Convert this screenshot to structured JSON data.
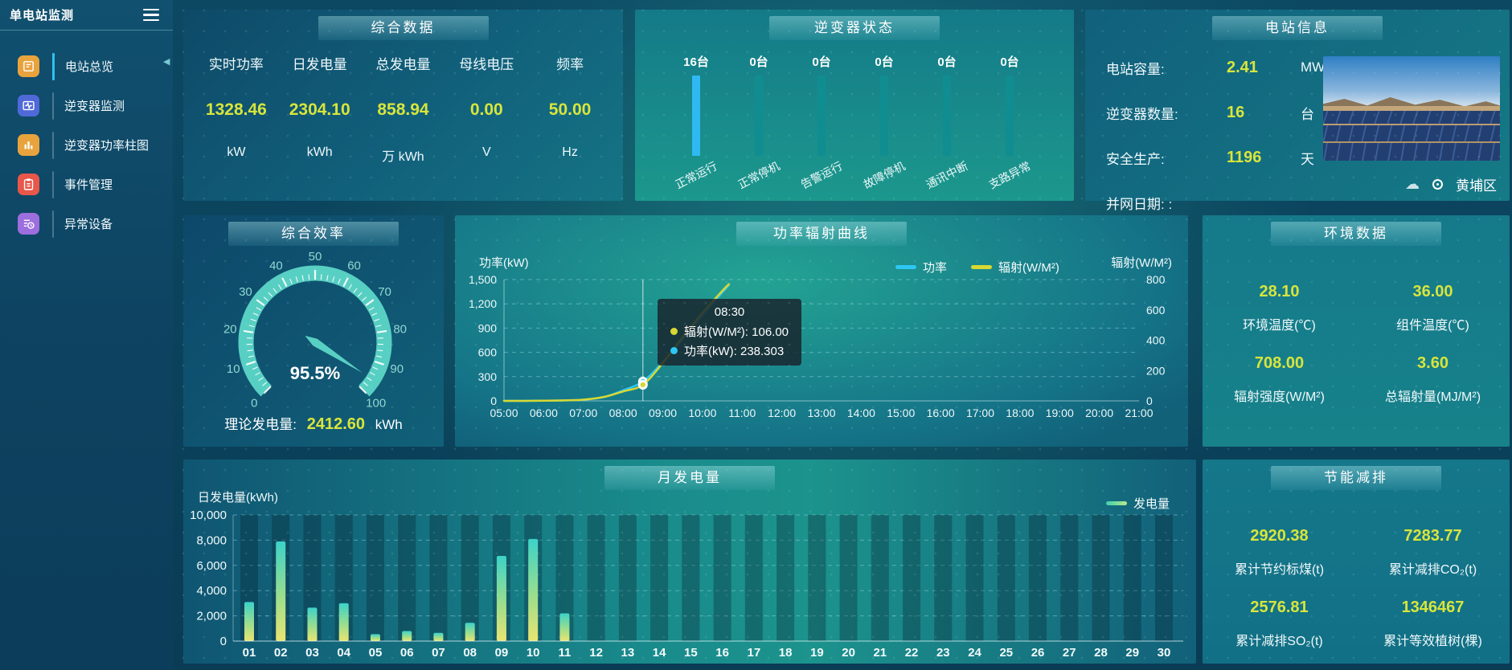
{
  "app": {
    "title": "单电站监测"
  },
  "sidebar": {
    "items": [
      {
        "label": "电站总览",
        "active": true,
        "color": "#e8a33d"
      },
      {
        "label": "逆变器监测",
        "active": false,
        "color": "#5069d8"
      },
      {
        "label": "逆变器功率柱图",
        "active": false,
        "color": "#e8a33d"
      },
      {
        "label": "事件管理",
        "active": false,
        "color": "#e8574a"
      },
      {
        "label": "异常设备",
        "active": false,
        "color": "#9d6ede"
      }
    ]
  },
  "panels": {
    "summary": {
      "title": "综合数据",
      "metrics": [
        {
          "label": "实时功率",
          "value": "1328.46",
          "unit": "kW"
        },
        {
          "label": "日发电量",
          "value": "2304.10",
          "unit": "kWh"
        },
        {
          "label": "总发电量",
          "value": "858.94",
          "unit": "万 kWh"
        },
        {
          "label": "母线电压",
          "value": "0.00",
          "unit": "V"
        },
        {
          "label": "频率",
          "value": "50.00",
          "unit": "Hz"
        }
      ]
    },
    "inverter_status": {
      "title": "逆变器状态",
      "colors": {
        "active": "#2fb9f2",
        "normal": "#108d90"
      },
      "bars": [
        {
          "count": "16台",
          "label": "正常运行",
          "active": true
        },
        {
          "count": "0台",
          "label": "正常停机",
          "active": false
        },
        {
          "count": "0台",
          "label": "告警运行",
          "active": false
        },
        {
          "count": "0台",
          "label": "故障停机",
          "active": false
        },
        {
          "count": "0台",
          "label": "通讯中断",
          "active": false
        },
        {
          "count": "0台",
          "label": "支路异常",
          "active": false
        }
      ]
    },
    "station_info": {
      "title": "电站信息",
      "rows": [
        {
          "label": "电站容量:",
          "value": "2.41",
          "unit": "MW"
        },
        {
          "label": "逆变器数量:",
          "value": "16",
          "unit": "台"
        },
        {
          "label": "安全生产:",
          "value": "1196",
          "unit": "天"
        },
        {
          "label": "并网日期: :",
          "value": "",
          "unit": ""
        }
      ],
      "location": "黄埔区"
    },
    "efficiency": {
      "title": "综合效率",
      "theory_label": "理论发电量:",
      "theory_value": "2412.60",
      "theory_unit": "kWh"
    },
    "power_curve": {
      "title": "功率辐射曲线"
    },
    "environment": {
      "title": "环境数据",
      "metrics": [
        {
          "value": "28.10",
          "label": "环境温度(℃)"
        },
        {
          "value": "36.00",
          "label": "组件温度(℃)"
        },
        {
          "value": "708.00",
          "label": "辐射强度(W/M²)"
        },
        {
          "value": "3.60",
          "label": "总辐射量(MJ/M²)"
        }
      ]
    },
    "monthly": {
      "title": "月发电量"
    },
    "saving": {
      "title": "节能减排",
      "metrics": [
        {
          "value": "2920.38",
          "label": "累计节约标煤(t)"
        },
        {
          "value": "7283.77",
          "label": "累计减排CO₂(t)"
        },
        {
          "value": "2576.81",
          "label": "累计减排SO₂(t)"
        },
        {
          "value": "1346467",
          "label": "累计等效植树(棵)"
        }
      ]
    }
  },
  "chart_data": [
    {
      "id": "efficiency_gauge",
      "type": "gauge",
      "title": "综合效率",
      "value": 95.5,
      "display": "95.5%",
      "min": 0,
      "max": 100,
      "tick_labels": [
        0,
        10,
        20,
        30,
        40,
        50,
        60,
        70,
        80,
        90,
        100
      ],
      "ring_color": "#58cfc3",
      "label_color": "#8fd8d2"
    },
    {
      "id": "power_curve",
      "type": "line",
      "title": "功率辐射曲线",
      "left_axis": {
        "label": "功率(kW)",
        "min": 0,
        "max": 1500,
        "ticks": [
          0,
          300,
          600,
          900,
          1200,
          1500
        ]
      },
      "right_axis": {
        "label": "辐射(W/M²)",
        "min": 0,
        "max": 800,
        "ticks": [
          0,
          200,
          400,
          600,
          800
        ]
      },
      "x_ticks": [
        "05:00",
        "06:00",
        "07:00",
        "08:00",
        "09:00",
        "10:00",
        "11:00",
        "12:00",
        "13:00",
        "14:00",
        "15:00",
        "16:00",
        "17:00",
        "18:00",
        "19:00",
        "20:00",
        "21:00"
      ],
      "legend_position": "top-center-right",
      "grid": true,
      "series": [
        {
          "name": "功率",
          "color": "#2ec7f5",
          "axis": "left",
          "points": [
            [
              "05:00",
              0
            ],
            [
              "05:30",
              0.5
            ],
            [
              "06:00",
              2
            ],
            [
              "06:30",
              5
            ],
            [
              "07:00",
              15
            ],
            [
              "07:30",
              45
            ],
            [
              "08:00",
              130
            ],
            [
              "08:30",
              238.303
            ],
            [
              "09:00",
              480
            ],
            [
              "09:30",
              760
            ],
            [
              "10:00",
              1060
            ],
            [
              "10:30",
              1340
            ],
            [
              "10:40",
              1430
            ]
          ]
        },
        {
          "name": "辐射(W/M²)",
          "color": "#d8d832",
          "axis": "right",
          "points": [
            [
              "05:00",
              0
            ],
            [
              "05:30",
              0
            ],
            [
              "06:00",
              1
            ],
            [
              "06:30",
              3
            ],
            [
              "07:00",
              8
            ],
            [
              "07:30",
              25
            ],
            [
              "08:00",
              62
            ],
            [
              "08:30",
              106
            ],
            [
              "09:00",
              250
            ],
            [
              "09:30",
              420
            ],
            [
              "10:00",
              580
            ],
            [
              "10:30",
              725
            ],
            [
              "10:40",
              770
            ]
          ]
        }
      ],
      "tooltip": {
        "time": "08:30",
        "lines": [
          {
            "color": "#d8d832",
            "text": "辐射(W/M²): 106.00"
          },
          {
            "color": "#2ec7f5",
            "text": "功率(kW): 238.303"
          }
        ]
      }
    },
    {
      "id": "monthly",
      "type": "bar",
      "title": "月发电量",
      "ylabel": "日发电量(kWh)",
      "legend": "发电量",
      "ylim": [
        0,
        10000
      ],
      "yticks": [
        0,
        2000,
        4000,
        6000,
        8000,
        10000
      ],
      "categories": [
        "01",
        "02",
        "03",
        "04",
        "05",
        "06",
        "07",
        "08",
        "09",
        "10",
        "11",
        "12",
        "13",
        "14",
        "15",
        "16",
        "17",
        "18",
        "19",
        "20",
        "21",
        "22",
        "23",
        "24",
        "25",
        "26",
        "27",
        "28",
        "29",
        "30"
      ],
      "values": [
        3100,
        7900,
        2650,
        3000,
        550,
        800,
        650,
        1450,
        6750,
        8100,
        2200,
        0,
        0,
        0,
        0,
        0,
        0,
        0,
        0,
        0,
        0,
        0,
        0,
        0,
        0,
        0,
        0,
        0,
        0,
        0
      ],
      "bar_gradient": [
        "#3dd2c8",
        "#9ade8e",
        "#eae470"
      ],
      "shadow_color": "rgba(5,32,48,0.32)"
    }
  ]
}
